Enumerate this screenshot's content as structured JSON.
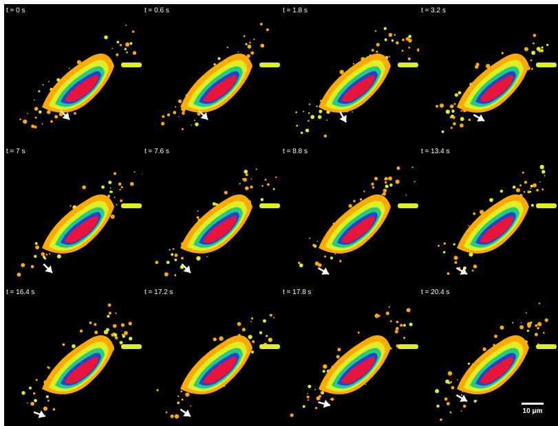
{
  "panels": [
    {
      "label": "t = 0 s"
    },
    {
      "label": "t = 0.6 s"
    },
    {
      "label": "t = 1.8 s"
    },
    {
      "label": "t = 3.2 s"
    },
    {
      "label": "t = 7 s"
    },
    {
      "label": "t = 7.6 s"
    },
    {
      "label": "t = 8.8 s"
    },
    {
      "label": "t = 13.4 s"
    },
    {
      "label": "t = 16.4 s"
    },
    {
      "label": "t = 17.2 s"
    },
    {
      "label": "t = 17.8 s"
    },
    {
      "label": "t = 20.4 s"
    }
  ],
  "scale_bar": {
    "label": "10 μm"
  },
  "colors": {
    "background": "#000000",
    "core": "#e8143c",
    "inner": "#2244cc",
    "mid": "#22cc88",
    "edge": "#ddee22",
    "outer": "#ffaa00",
    "arrow": "#ffffff"
  },
  "icons": {
    "pointer": "arrow-icon"
  }
}
